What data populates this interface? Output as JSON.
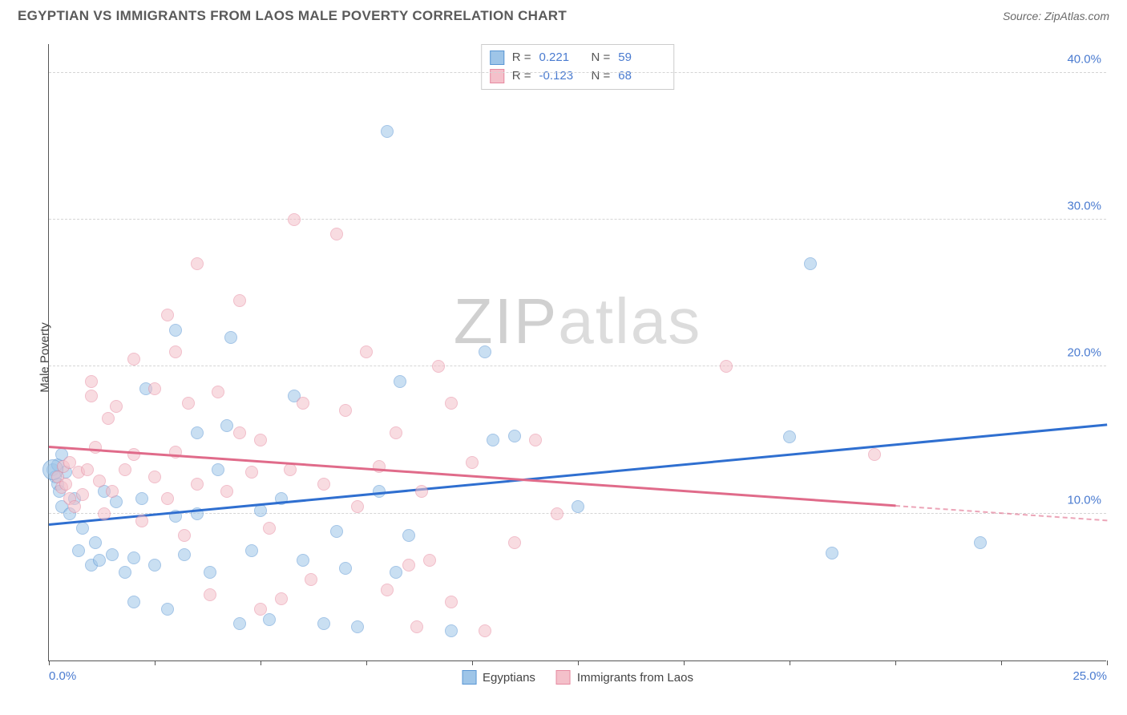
{
  "header": {
    "title": "EGYPTIAN VS IMMIGRANTS FROM LAOS MALE POVERTY CORRELATION CHART",
    "source_label": "Source:",
    "source_name": "ZipAtlas.com"
  },
  "watermark": {
    "part1": "ZIP",
    "part2": "atlas"
  },
  "chart": {
    "type": "scatter",
    "ylabel": "Male Poverty",
    "xlim": [
      0,
      25
    ],
    "ylim": [
      0,
      42
    ],
    "background_color": "#ffffff",
    "grid_color": "#d5d5d5",
    "axis_color": "#555555",
    "tick_label_color": "#4a7bd0",
    "tick_fontsize": 15,
    "label_fontsize": 15,
    "yticks": [
      10,
      20,
      30,
      40
    ],
    "ytick_labels": [
      "10.0%",
      "20.0%",
      "30.0%",
      "40.0%"
    ],
    "xtick_positions": [
      0,
      2.5,
      5,
      7.5,
      10,
      12.5,
      15,
      17.5,
      20,
      22.5,
      25
    ],
    "xtick_labels_shown": {
      "0": "0.0%",
      "25": "25.0%"
    },
    "marker_radius": 8,
    "marker_opacity": 0.55,
    "marker_border_opacity": 0.9,
    "series": [
      {
        "key": "egyptians",
        "label": "Egyptians",
        "fill_color": "#9ec5e8",
        "border_color": "#5a96d4",
        "trend_color": "#2f6fd0",
        "R": "0.221",
        "N": "59",
        "trend": {
          "x1": 0,
          "y1": 9.2,
          "x2": 25,
          "y2": 16.0,
          "solid_until_x": 25
        },
        "points": [
          [
            0.1,
            13.0
          ],
          [
            0.15,
            12.5
          ],
          [
            0.2,
            13.3
          ],
          [
            0.2,
            12.0
          ],
          [
            0.25,
            11.5
          ],
          [
            0.3,
            10.5
          ],
          [
            0.3,
            14.0
          ],
          [
            0.4,
            12.8
          ],
          [
            0.5,
            10.0
          ],
          [
            0.6,
            11.0
          ],
          [
            0.7,
            7.5
          ],
          [
            0.8,
            9.0
          ],
          [
            1.0,
            6.5
          ],
          [
            1.1,
            8.0
          ],
          [
            1.2,
            6.8
          ],
          [
            1.3,
            11.5
          ],
          [
            1.5,
            7.2
          ],
          [
            1.6,
            10.8
          ],
          [
            1.8,
            6.0
          ],
          [
            2.0,
            7.0
          ],
          [
            2.0,
            4.0
          ],
          [
            2.2,
            11.0
          ],
          [
            2.3,
            18.5
          ],
          [
            2.5,
            6.5
          ],
          [
            2.8,
            3.5
          ],
          [
            3.0,
            22.5
          ],
          [
            3.0,
            9.8
          ],
          [
            3.2,
            7.2
          ],
          [
            3.5,
            15.5
          ],
          [
            3.5,
            10.0
          ],
          [
            3.8,
            6.0
          ],
          [
            4.0,
            13.0
          ],
          [
            4.2,
            16.0
          ],
          [
            4.3,
            22.0
          ],
          [
            4.5,
            2.5
          ],
          [
            4.8,
            7.5
          ],
          [
            5.0,
            10.2
          ],
          [
            5.2,
            2.8
          ],
          [
            5.5,
            11.0
          ],
          [
            5.8,
            18.0
          ],
          [
            6.0,
            6.8
          ],
          [
            6.5,
            2.5
          ],
          [
            6.8,
            8.8
          ],
          [
            7.0,
            6.3
          ],
          [
            7.3,
            2.3
          ],
          [
            7.8,
            11.5
          ],
          [
            8.0,
            36.0
          ],
          [
            8.2,
            6.0
          ],
          [
            8.3,
            19.0
          ],
          [
            8.5,
            8.5
          ],
          [
            9.5,
            2.0
          ],
          [
            10.3,
            21.0
          ],
          [
            10.5,
            15.0
          ],
          [
            11.0,
            15.3
          ],
          [
            12.5,
            10.5
          ],
          [
            17.5,
            15.2
          ],
          [
            18.5,
            7.3
          ],
          [
            18.0,
            27.0
          ],
          [
            22.0,
            8.0
          ]
        ],
        "big_marker": {
          "x": 0.1,
          "y": 13.0,
          "radius": 13
        }
      },
      {
        "key": "laos",
        "label": "Immigrants from Laos",
        "fill_color": "#f4c0ca",
        "border_color": "#e68aa0",
        "trend_color": "#e06b8a",
        "R": "-0.123",
        "N": "68",
        "trend": {
          "x1": 0,
          "y1": 14.5,
          "x2": 25,
          "y2": 9.5,
          "solid_until_x": 20
        },
        "points": [
          [
            0.2,
            12.5
          ],
          [
            0.3,
            11.8
          ],
          [
            0.35,
            13.2
          ],
          [
            0.4,
            12.0
          ],
          [
            0.5,
            11.0
          ],
          [
            0.5,
            13.5
          ],
          [
            0.6,
            10.5
          ],
          [
            0.7,
            12.8
          ],
          [
            0.8,
            11.3
          ],
          [
            0.9,
            13.0
          ],
          [
            1.0,
            18.0
          ],
          [
            1.0,
            19.0
          ],
          [
            1.1,
            14.5
          ],
          [
            1.2,
            12.2
          ],
          [
            1.3,
            10.0
          ],
          [
            1.4,
            16.5
          ],
          [
            1.5,
            11.5
          ],
          [
            1.6,
            17.3
          ],
          [
            1.8,
            13.0
          ],
          [
            2.0,
            20.5
          ],
          [
            2.0,
            14.0
          ],
          [
            2.2,
            9.5
          ],
          [
            2.5,
            18.5
          ],
          [
            2.5,
            12.5
          ],
          [
            2.8,
            23.5
          ],
          [
            2.8,
            11.0
          ],
          [
            3.0,
            14.2
          ],
          [
            3.2,
            8.5
          ],
          [
            3.3,
            17.5
          ],
          [
            3.5,
            27.0
          ],
          [
            3.5,
            12.0
          ],
          [
            3.8,
            4.5
          ],
          [
            4.0,
            18.3
          ],
          [
            4.2,
            11.5
          ],
          [
            4.5,
            15.5
          ],
          [
            4.5,
            24.5
          ],
          [
            4.8,
            12.8
          ],
          [
            5.0,
            3.5
          ],
          [
            5.0,
            15.0
          ],
          [
            5.2,
            9.0
          ],
          [
            5.5,
            4.2
          ],
          [
            5.7,
            13.0
          ],
          [
            5.8,
            30.0
          ],
          [
            6.0,
            17.5
          ],
          [
            6.2,
            5.5
          ],
          [
            6.5,
            12.0
          ],
          [
            6.8,
            29.0
          ],
          [
            7.0,
            17.0
          ],
          [
            7.3,
            10.5
          ],
          [
            7.5,
            21.0
          ],
          [
            7.8,
            13.2
          ],
          [
            8.0,
            4.8
          ],
          [
            8.2,
            15.5
          ],
          [
            8.5,
            6.5
          ],
          [
            8.8,
            11.5
          ],
          [
            9.0,
            6.8
          ],
          [
            9.2,
            20.0
          ],
          [
            9.5,
            17.5
          ],
          [
            9.5,
            4.0
          ],
          [
            10.0,
            13.5
          ],
          [
            10.3,
            2.0
          ],
          [
            11.0,
            8.0
          ],
          [
            11.5,
            15.0
          ],
          [
            12.0,
            10.0
          ],
          [
            16.0,
            20.0
          ],
          [
            19.5,
            14.0
          ],
          [
            8.7,
            2.3
          ],
          [
            3.0,
            21.0
          ]
        ]
      }
    ],
    "legend1_labels": {
      "R": "R =",
      "N": "N ="
    },
    "legend2_labels": [
      "Egyptians",
      "Immigrants from Laos"
    ]
  }
}
